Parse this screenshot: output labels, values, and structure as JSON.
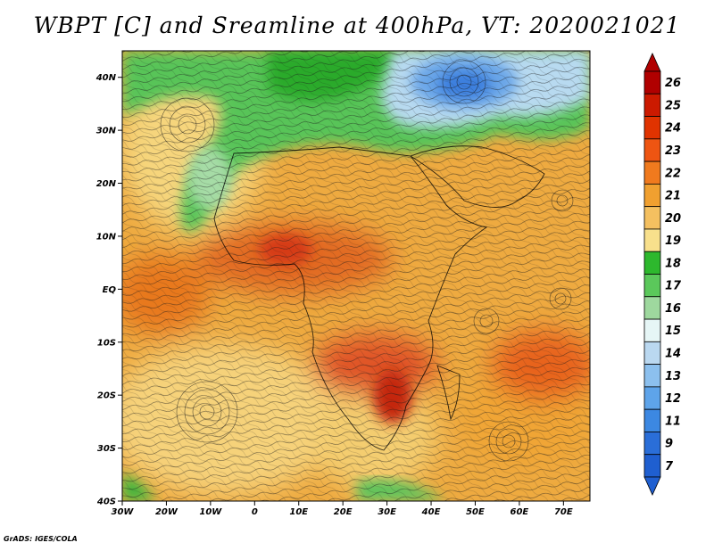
{
  "title": "WBPT [C] and Sreamline at 400hPa, VT: 2020021021",
  "credit": "GrADS: IGES/COLA",
  "map": {
    "lon_range": [
      -30,
      76
    ],
    "lat_range": [
      -40,
      45
    ],
    "lat_ticks": [
      {
        "value": 40,
        "label": "40N"
      },
      {
        "value": 30,
        "label": "30N"
      },
      {
        "value": 20,
        "label": "20N"
      },
      {
        "value": 10,
        "label": "10N"
      },
      {
        "value": 0,
        "label": "EQ"
      },
      {
        "value": -10,
        "label": "10S"
      },
      {
        "value": -20,
        "label": "20S"
      },
      {
        "value": -30,
        "label": "30S"
      },
      {
        "value": -40,
        "label": "40S"
      }
    ],
    "lon_ticks": [
      {
        "value": -30,
        "label": "30W"
      },
      {
        "value": -20,
        "label": "20W"
      },
      {
        "value": -10,
        "label": "10W"
      },
      {
        "value": 0,
        "label": "0"
      },
      {
        "value": 10,
        "label": "10E"
      },
      {
        "value": 20,
        "label": "20E"
      },
      {
        "value": 30,
        "label": "30E"
      },
      {
        "value": 40,
        "label": "40E"
      },
      {
        "value": 50,
        "label": "50E"
      },
      {
        "value": 60,
        "label": "60E"
      },
      {
        "value": 70,
        "label": "70E"
      }
    ]
  },
  "colorbar": {
    "levels": [
      "26",
      "25",
      "24",
      "23",
      "22",
      "21",
      "20",
      "19",
      "18",
      "17",
      "16",
      "15",
      "14",
      "13",
      "12",
      "11",
      "9",
      "7"
    ],
    "colors": [
      "#b00000",
      "#cc1a00",
      "#e03300",
      "#ee5512",
      "#f07a1e",
      "#f0a030",
      "#f4c060",
      "#f8e08c",
      "#2db82d",
      "#5bc85b",
      "#9ed89e",
      "#e6f6f6",
      "#bad8f0",
      "#8cc0ee",
      "#5ea4ea",
      "#3c88e2",
      "#2a6ed8",
      "#1f5fd0"
    ],
    "top_arrow_color": "#b00000",
    "bottom_arrow_color": "#1f5fd0"
  }
}
